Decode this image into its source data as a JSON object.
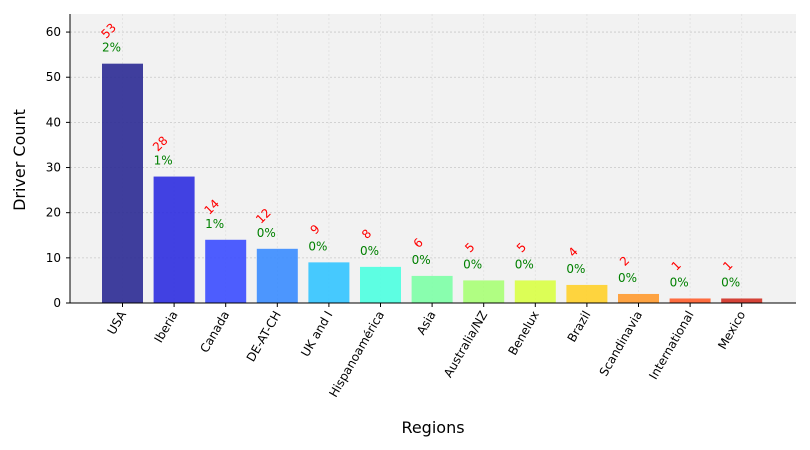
{
  "chart_data": {
    "type": "bar",
    "xlabel": "Regions",
    "ylabel": "Driver Count",
    "categories": [
      "USA",
      "Iberia",
      "Canada",
      "DE-AT-CH",
      "UK and I",
      "Hispanoamérica",
      "Asia",
      "Australia/NZ",
      "Benelux",
      "Brazil",
      "Scandinavia",
      "International",
      "Mexico"
    ],
    "values": [
      53,
      28,
      14,
      12,
      9,
      8,
      6,
      5,
      5,
      4,
      2,
      1,
      1
    ],
    "count_labels": [
      "53",
      "28",
      "14",
      "12",
      "9",
      "8",
      "6",
      "5",
      "5",
      "4",
      "2",
      "1",
      "1"
    ],
    "percent_labels": [
      "2%",
      "1%",
      "1%",
      "0%",
      "0%",
      "0%",
      "0%",
      "0%",
      "0%",
      "0%",
      "0%",
      "0%",
      "0%"
    ],
    "bar_colors": [
      "#2b2a94",
      "#2e2ee0",
      "#3b4cff",
      "#3a8cff",
      "#33c4ff",
      "#4dffe0",
      "#7dffa6",
      "#a8ff76",
      "#d9ff45",
      "#ffd02a",
      "#ff9a2f",
      "#ff5e2c",
      "#d23024"
    ],
    "ylim": [
      0,
      64
    ],
    "yticks": [
      0,
      10,
      20,
      30,
      40,
      50,
      60
    ],
    "ytick_labels": [
      "0",
      "10",
      "20",
      "30",
      "40",
      "50",
      "60"
    ],
    "grid": true,
    "plot_background": "#f2f2f2",
    "count_label_color": "#ff0000",
    "percent_label_color": "#008000"
  }
}
